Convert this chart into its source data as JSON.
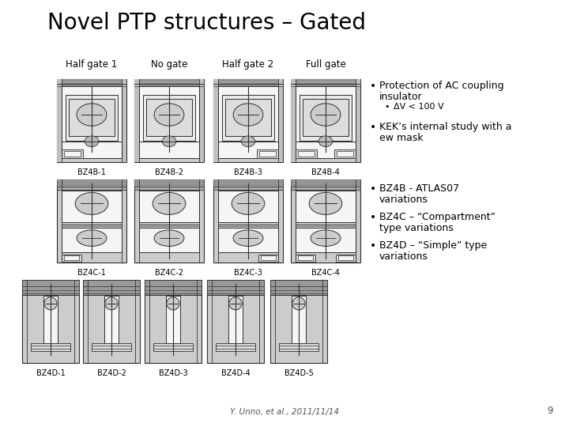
{
  "title": "Novel PTP structures – Gated",
  "title_fontsize": 20,
  "col_labels": [
    "Half gate 1",
    "No gate",
    "Half gate 2",
    "Full gate"
  ],
  "row1_labels": [
    "BZ4B-1",
    "BZ4B-2",
    "BZ4B-3",
    "BZ4B-4"
  ],
  "row2_labels": [
    "BZ4C-1",
    "BZ4C-2",
    "BZ4C-3",
    "BZ4C-4"
  ],
  "row3_labels": [
    "BZ4D-1",
    "BZ4D-2",
    "BZ4D-3",
    "BZ4D-4",
    "BZ4D-5"
  ],
  "label_fontsize": 7,
  "header_fontsize": 8.5,
  "bullet_fontsize": 9,
  "bullet1_line1": "Protection of AC coupling",
  "bullet1_line2": "insulator",
  "bullet1_sub": "ΔV < 100 V",
  "bullet2": "KEK’s internal study with a new mask",
  "bullet3_line1": "BZ4B - ATLAS07",
  "bullet3_line2": "variations",
  "bullet4_line1": "BZ4C – “Compartment”",
  "bullet4_line2": "type variations",
  "bullet5_line1": "BZ4D – “Simple” type",
  "bullet5_line2": "variations",
  "footer": "Y. Unno, et al., 2011/11/14",
  "page_num": "9",
  "bg_color": "#ffffff",
  "text_color": "#000000",
  "hatch_color": "#b0b0b0",
  "line_color": "#303030",
  "inner_fill": "#f5f5f5",
  "mid_fill": "#e0e0e0",
  "dark_fill": "#aaaaaa"
}
